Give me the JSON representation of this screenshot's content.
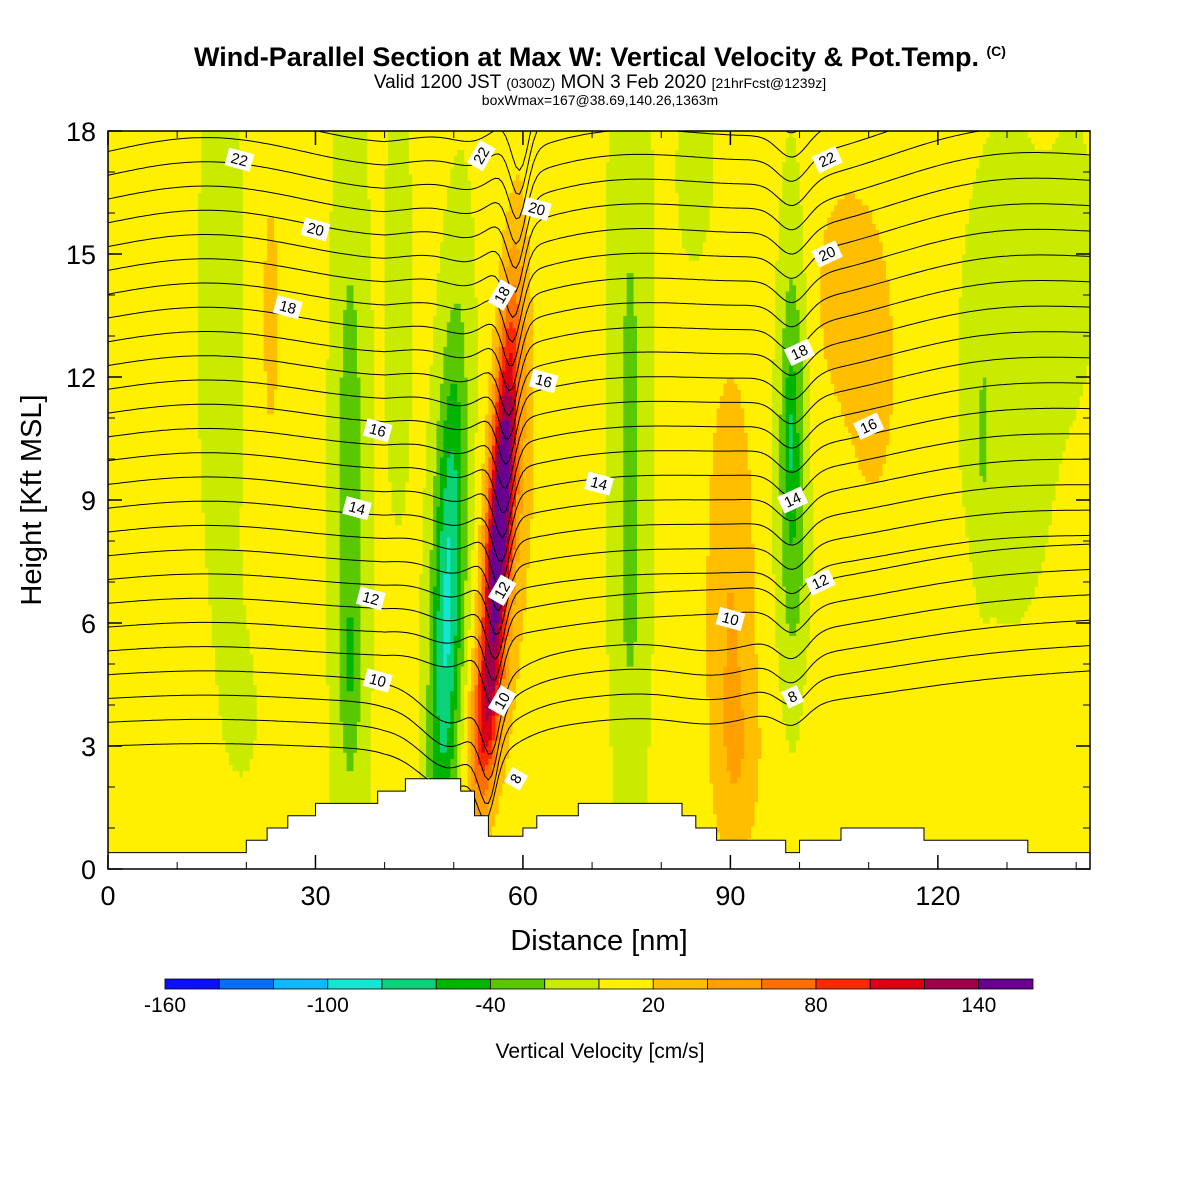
{
  "title": {
    "main": "Wind-Parallel Section at Max W: Vertical Velocity & Pot.Temp.",
    "mark": "(C)",
    "valid_a": "Valid 1200 JST",
    "valid_z": "(0300Z)",
    "valid_b": "MON 3 Feb 2020",
    "fcst": "[21hrFcst@1239z]",
    "boxw": "boxWmax=167@38.69,140.26,1363m"
  },
  "chart_data": {
    "type": "heatmap",
    "xlabel": "Distance [nm]",
    "ylabel": "Height [Kft MSL]",
    "xlim": [
      0,
      142
    ],
    "ylim": [
      0,
      18
    ],
    "xticks": [
      "0",
      "30",
      "60",
      "90",
      "120"
    ],
    "yticks": [
      "0",
      "3",
      "6",
      "9",
      "12",
      "15",
      "18"
    ],
    "colorbar": {
      "label": "Vertical Velocity [cm/s]",
      "min": -160,
      "max": 160,
      "step": 20,
      "tick_labels": [
        "-160",
        "-100",
        "-40",
        "20",
        "80",
        "140"
      ],
      "colors": [
        "#0a10ff",
        "#0a6cf5",
        "#10b8ff",
        "#14e6d2",
        "#0ad278",
        "#00b400",
        "#5ac800",
        "#c8eb00",
        "#fff000",
        "#ffbe00",
        "#ffa000",
        "#ff6e00",
        "#ff2800",
        "#dc0014",
        "#a0004b",
        "#690091"
      ]
    },
    "theta_contours": {
      "units": "C",
      "labels": [
        {
          "text": "22",
          "x": 19,
          "y": 17.3
        },
        {
          "text": "20",
          "x": 30,
          "y": 15.6
        },
        {
          "text": "18",
          "x": 26,
          "y": 13.7
        },
        {
          "text": "16",
          "x": 39,
          "y": 10.7
        },
        {
          "text": "14",
          "x": 36,
          "y": 8.8
        },
        {
          "text": "12",
          "x": 38,
          "y": 6.6
        },
        {
          "text": "10",
          "x": 39,
          "y": 4.6
        },
        {
          "text": "22",
          "x": 54,
          "y": 17.4
        },
        {
          "text": "20",
          "x": 62,
          "y": 16.1
        },
        {
          "text": "18",
          "x": 57,
          "y": 14.0
        },
        {
          "text": "16",
          "x": 63,
          "y": 11.9
        },
        {
          "text": "14",
          "x": 71,
          "y": 9.4
        },
        {
          "text": "12",
          "x": 57,
          "y": 6.8
        },
        {
          "text": "10",
          "x": 57,
          "y": 4.1
        },
        {
          "text": "8",
          "x": 59,
          "y": 2.2
        },
        {
          "text": "22",
          "x": 104,
          "y": 17.3
        },
        {
          "text": "20",
          "x": 104,
          "y": 15.0
        },
        {
          "text": "18",
          "x": 100,
          "y": 12.6
        },
        {
          "text": "16",
          "x": 110,
          "y": 10.8
        },
        {
          "text": "14",
          "x": 99,
          "y": 9.0
        },
        {
          "text": "12",
          "x": 103,
          "y": 7.0
        },
        {
          "text": "10",
          "x": 90,
          "y": 6.1
        },
        {
          "text": "8",
          "x": 99,
          "y": 4.2
        }
      ]
    },
    "terrain_x": [
      0,
      19,
      20,
      22,
      23,
      25,
      26,
      28,
      30,
      34,
      36,
      38,
      39,
      40,
      43,
      47,
      51,
      53,
      55,
      57,
      58,
      60,
      62,
      65,
      68,
      72,
      76,
      80,
      83,
      85,
      88,
      90,
      93,
      96,
      98,
      100,
      103,
      106,
      110,
      114,
      118,
      122,
      126,
      130,
      133,
      137,
      142
    ],
    "terrain_y": [
      0.4,
      0.4,
      0.7,
      0.7,
      1.0,
      1.0,
      1.3,
      1.3,
      1.6,
      1.6,
      1.6,
      1.6,
      1.9,
      1.9,
      2.2,
      2.2,
      1.9,
      1.3,
      0.8,
      0.8,
      0.8,
      1.0,
      1.3,
      1.3,
      1.6,
      1.6,
      1.6,
      1.6,
      1.3,
      1.0,
      0.7,
      0.7,
      0.7,
      0.7,
      0.4,
      0.7,
      0.7,
      1.0,
      1.0,
      1.0,
      0.7,
      0.7,
      0.7,
      0.7,
      0.4,
      0.4,
      0.4
    ]
  }
}
